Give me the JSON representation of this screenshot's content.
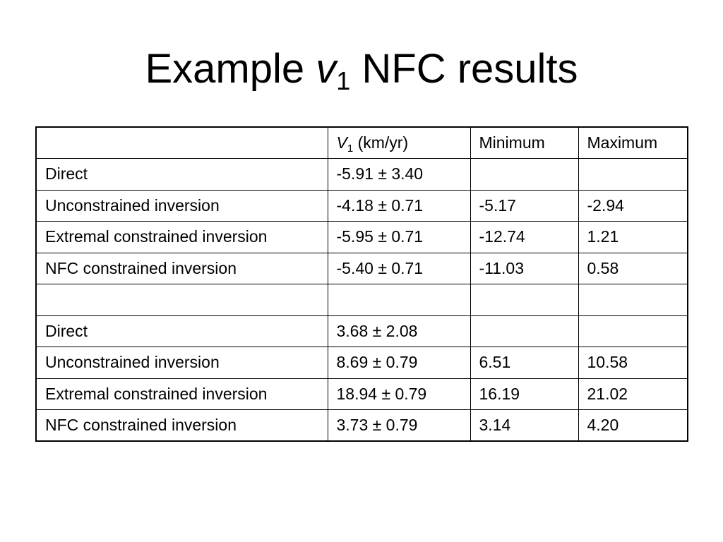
{
  "title": {
    "before": "Example",
    "symbol": "v",
    "subscript": "1",
    "after": "NFC results"
  },
  "table": {
    "header": [
      null,
      {
        "symbol": "V",
        "subscript": "1",
        "unit": "(km/yr)"
      },
      "Minimum",
      "Maximum"
    ],
    "rows": [
      [
        "Direct",
        "-5.91 ± 3.40",
        null,
        null
      ],
      [
        "Unconstrained inversion",
        "-4.18 ± 0.71",
        "-5.17",
        "-2.94"
      ],
      [
        "Extremal constrained inversion",
        "-5.95 ± 0.71",
        "-12.74",
        "1.21"
      ],
      [
        "NFC constrained inversion",
        "-5.40 ± 0.71",
        "-11.03",
        "0.58"
      ],
      [
        null,
        null,
        null,
        null
      ],
      [
        "Direct",
        "3.68 ± 2.08",
        null,
        null
      ],
      [
        "Unconstrained inversion",
        "8.69 ± 0.79",
        "6.51",
        "10.58"
      ],
      [
        "Extremal constrained inversion",
        "18.94 ± 0.79",
        "16.19",
        "21.02"
      ],
      [
        "NFC constrained inversion",
        "3.73 ± 0.79",
        "3.14",
        "4.20"
      ]
    ]
  }
}
